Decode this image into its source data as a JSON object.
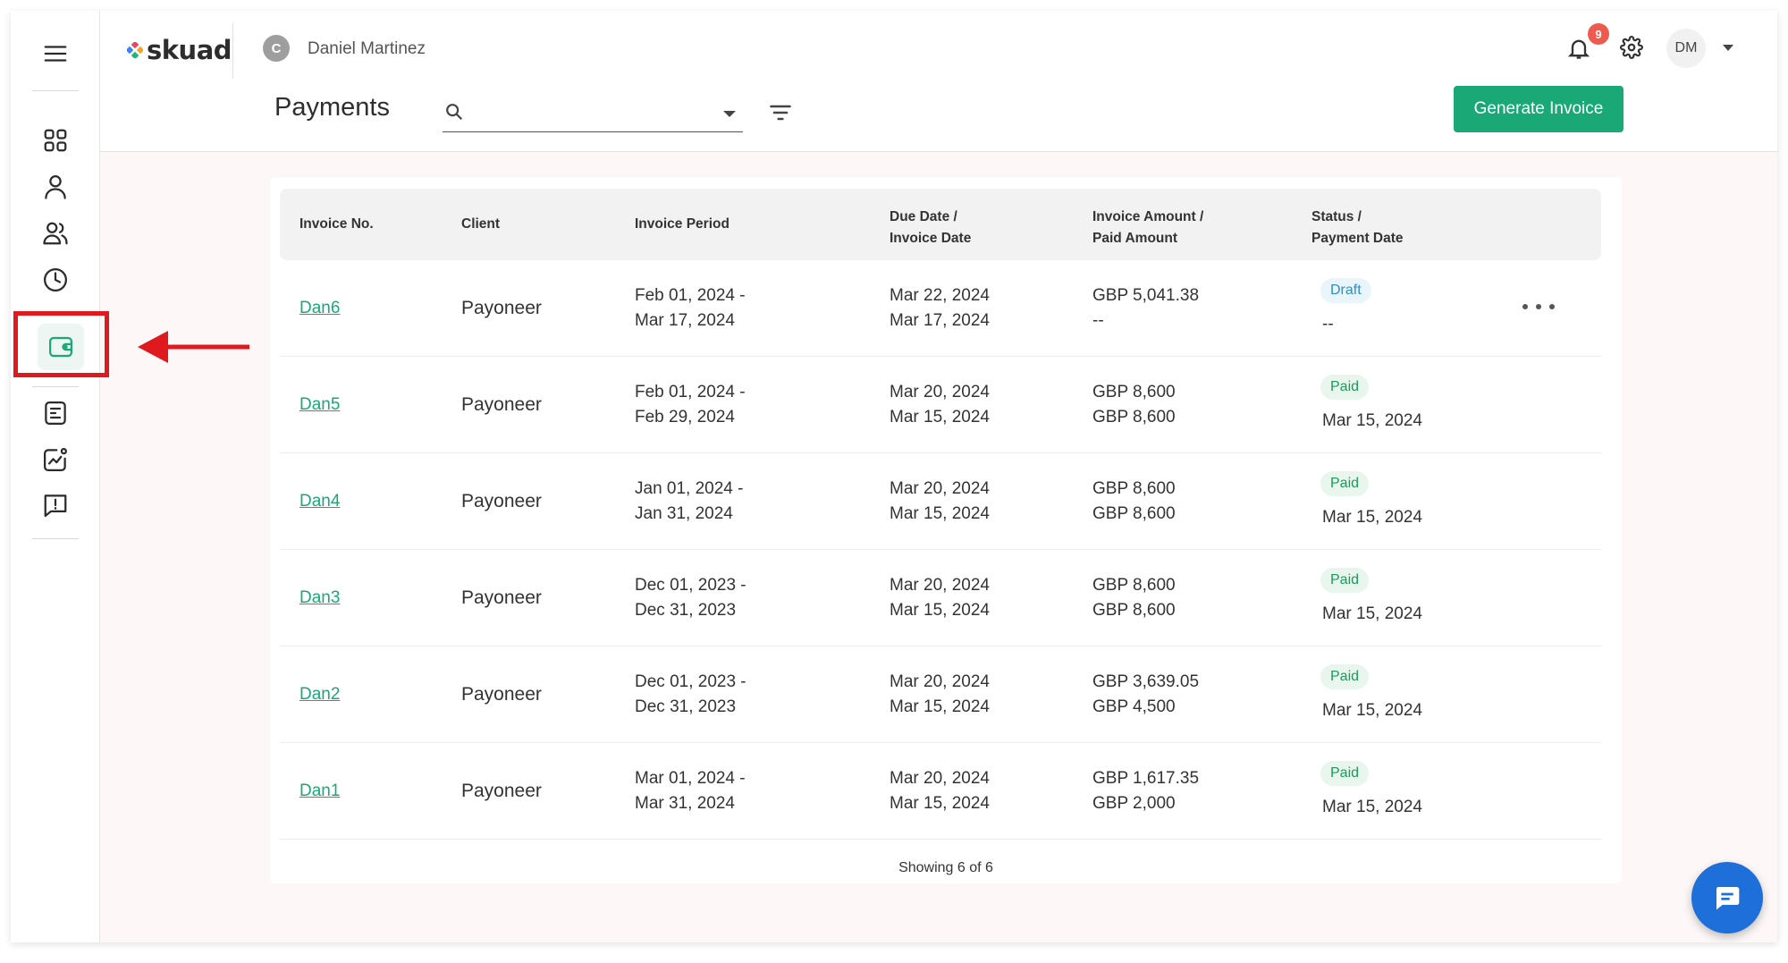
{
  "header": {
    "logo_text": "skuad",
    "client_initial": "C",
    "client_name": "Daniel Martinez",
    "notification_count": "9",
    "user_initials": "DM"
  },
  "page": {
    "title": "Payments",
    "search_placeholder": "",
    "generate_button": "Generate Invoice"
  },
  "sidebar": {
    "items": [
      {
        "name": "dashboard-grid-icon"
      },
      {
        "name": "person-icon"
      },
      {
        "name": "people-icon"
      },
      {
        "name": "clock-icon"
      },
      {
        "name": "wallet-icon",
        "active": true
      },
      {
        "name": "document-icon"
      },
      {
        "name": "analytics-icon"
      },
      {
        "name": "feedback-icon"
      }
    ]
  },
  "table": {
    "headers": {
      "invoice_no": "Invoice No.",
      "client": "Client",
      "period": "Invoice Period",
      "due_date_1": "Due Date /",
      "due_date_2": "Invoice Date",
      "amount_1": "Invoice Amount /",
      "amount_2": "Paid Amount",
      "status_1": "Status /",
      "status_2": "Payment Date"
    },
    "rows": [
      {
        "invoice": "Dan6",
        "client": "Payoneer",
        "period_start": "Feb 01, 2024 -",
        "period_end": "Mar 17, 2024",
        "due_date": "Mar 22, 2024",
        "invoice_date": "Mar 17, 2024",
        "invoice_amount": "GBP 5,041.38",
        "paid_amount": "--",
        "status": "Draft",
        "payment_date": "--"
      },
      {
        "invoice": "Dan5",
        "client": "Payoneer",
        "period_start": "Feb 01, 2024 -",
        "period_end": "Feb 29, 2024",
        "due_date": "Mar 20, 2024",
        "invoice_date": "Mar 15, 2024",
        "invoice_amount": "GBP 8,600",
        "paid_amount": "GBP 8,600",
        "status": "Paid",
        "payment_date": "Mar 15, 2024"
      },
      {
        "invoice": "Dan4",
        "client": "Payoneer",
        "period_start": "Jan 01, 2024 -",
        "period_end": "Jan 31, 2024",
        "due_date": "Mar 20, 2024",
        "invoice_date": "Mar 15, 2024",
        "invoice_amount": "GBP 8,600",
        "paid_amount": "GBP 8,600",
        "status": "Paid",
        "payment_date": "Mar 15, 2024"
      },
      {
        "invoice": "Dan3",
        "client": "Payoneer",
        "period_start": "Dec 01, 2023 -",
        "period_end": "Dec 31, 2023",
        "due_date": "Mar 20, 2024",
        "invoice_date": "Mar 15, 2024",
        "invoice_amount": "GBP 8,600",
        "paid_amount": "GBP 8,600",
        "status": "Paid",
        "payment_date": "Mar 15, 2024"
      },
      {
        "invoice": "Dan2",
        "client": "Payoneer",
        "period_start": "Dec 01, 2023 -",
        "period_end": "Dec 31, 2023",
        "due_date": "Mar 20, 2024",
        "invoice_date": "Mar 15, 2024",
        "invoice_amount": "GBP 3,639.05",
        "paid_amount": "GBP 4,500",
        "status": "Paid",
        "payment_date": "Mar 15, 2024"
      },
      {
        "invoice": "Dan1",
        "client": "Payoneer",
        "period_start": "Mar 01, 2024 -",
        "period_end": "Mar 31, 2024",
        "due_date": "Mar 20, 2024",
        "invoice_date": "Mar 15, 2024",
        "invoice_amount": "GBP 1,617.35",
        "paid_amount": "GBP 2,000",
        "status": "Paid",
        "payment_date": "Mar 15, 2024"
      }
    ],
    "footer": "Showing 6 of 6"
  },
  "colors": {
    "accent_green": "#1aa876",
    "highlight_red": "#e0191f",
    "chat_blue": "#1e6fd9"
  }
}
